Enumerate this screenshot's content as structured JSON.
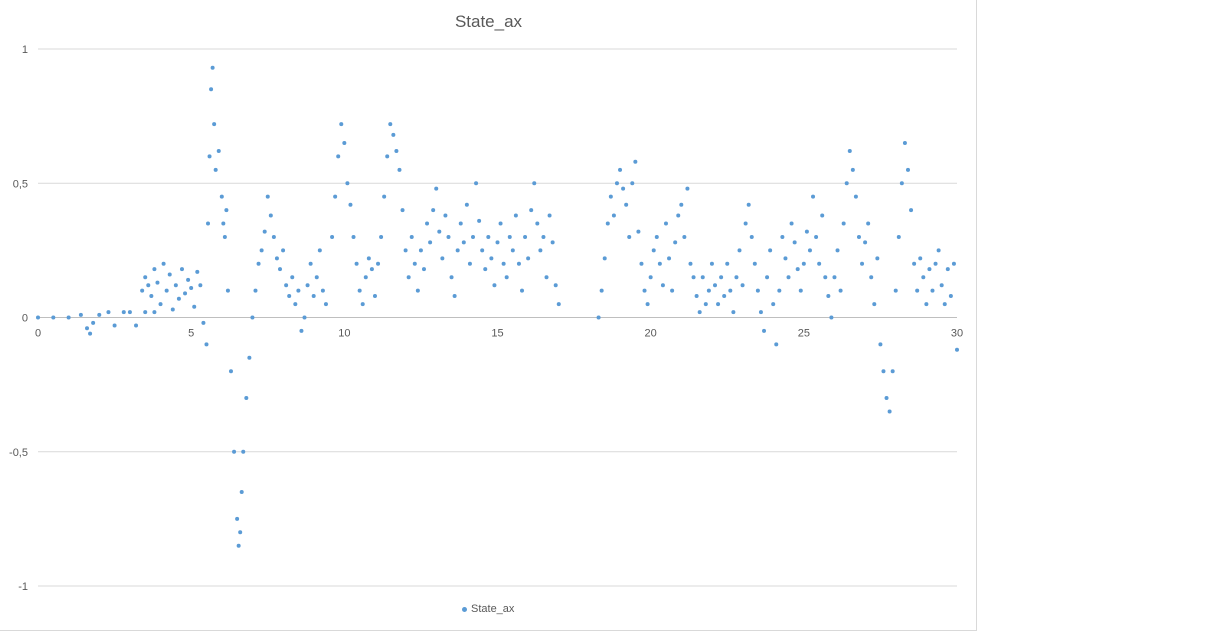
{
  "chart_data": {
    "type": "scatter",
    "title": "State_ax",
    "xlabel": "",
    "ylabel": "",
    "xlim": [
      0,
      30
    ],
    "ylim": [
      -1,
      1
    ],
    "x_ticks": [
      "0",
      "5",
      "10",
      "15",
      "20",
      "25",
      "30"
    ],
    "y_ticks": [
      "1",
      "0,5",
      "0",
      "-0,5",
      "-1"
    ],
    "grid": "horizontal",
    "legend": "bottom",
    "series": [
      {
        "name": "State_ax",
        "color": "#5b9bd5",
        "points": [
          [
            0.0,
            0.0
          ],
          [
            0.5,
            0.0
          ],
          [
            1.0,
            0.0
          ],
          [
            1.4,
            0.01
          ],
          [
            1.6,
            -0.04
          ],
          [
            1.7,
            -0.06
          ],
          [
            1.8,
            -0.02
          ],
          [
            2.0,
            0.01
          ],
          [
            2.3,
            0.02
          ],
          [
            2.5,
            -0.03
          ],
          [
            2.8,
            0.02
          ],
          [
            3.0,
            0.02
          ],
          [
            3.2,
            -0.03
          ],
          [
            3.5,
            0.02
          ],
          [
            3.8,
            0.02
          ],
          [
            3.4,
            0.1
          ],
          [
            3.5,
            0.15
          ],
          [
            3.6,
            0.12
          ],
          [
            3.7,
            0.08
          ],
          [
            3.8,
            0.18
          ],
          [
            3.9,
            0.13
          ],
          [
            4.0,
            0.05
          ],
          [
            4.1,
            0.2
          ],
          [
            4.2,
            0.1
          ],
          [
            4.3,
            0.16
          ],
          [
            4.4,
            0.03
          ],
          [
            4.5,
            0.12
          ],
          [
            4.6,
            0.07
          ],
          [
            4.7,
            0.18
          ],
          [
            4.8,
            0.09
          ],
          [
            4.9,
            0.14
          ],
          [
            5.0,
            0.11
          ],
          [
            5.1,
            0.04
          ],
          [
            5.2,
            0.17
          ],
          [
            5.3,
            0.12
          ],
          [
            5.4,
            -0.02
          ],
          [
            5.5,
            -0.1
          ],
          [
            5.55,
            0.35
          ],
          [
            5.6,
            0.6
          ],
          [
            5.65,
            0.85
          ],
          [
            5.7,
            0.93
          ],
          [
            5.75,
            0.72
          ],
          [
            5.8,
            0.55
          ],
          [
            5.9,
            0.62
          ],
          [
            6.0,
            0.45
          ],
          [
            6.05,
            0.35
          ],
          [
            6.1,
            0.3
          ],
          [
            6.15,
            0.4
          ],
          [
            6.2,
            0.1
          ],
          [
            6.3,
            -0.2
          ],
          [
            6.4,
            -0.5
          ],
          [
            6.5,
            -0.75
          ],
          [
            6.55,
            -0.85
          ],
          [
            6.6,
            -0.8
          ],
          [
            6.65,
            -0.65
          ],
          [
            6.7,
            -0.5
          ],
          [
            6.8,
            -0.3
          ],
          [
            6.9,
            -0.15
          ],
          [
            7.0,
            0.0
          ],
          [
            7.1,
            0.1
          ],
          [
            7.2,
            0.2
          ],
          [
            7.3,
            0.25
          ],
          [
            7.4,
            0.32
          ],
          [
            7.5,
            0.45
          ],
          [
            7.6,
            0.38
          ],
          [
            7.7,
            0.3
          ],
          [
            7.8,
            0.22
          ],
          [
            7.9,
            0.18
          ],
          [
            8.0,
            0.25
          ],
          [
            8.1,
            0.12
          ],
          [
            8.2,
            0.08
          ],
          [
            8.3,
            0.15
          ],
          [
            8.4,
            0.05
          ],
          [
            8.5,
            0.1
          ],
          [
            8.6,
            -0.05
          ],
          [
            8.7,
            0.0
          ],
          [
            8.8,
            0.12
          ],
          [
            8.9,
            0.2
          ],
          [
            9.0,
            0.08
          ],
          [
            9.1,
            0.15
          ],
          [
            9.2,
            0.25
          ],
          [
            9.3,
            0.1
          ],
          [
            9.4,
            0.05
          ],
          [
            9.6,
            0.3
          ],
          [
            9.7,
            0.45
          ],
          [
            9.8,
            0.6
          ],
          [
            9.9,
            0.72
          ],
          [
            10.0,
            0.65
          ],
          [
            10.1,
            0.5
          ],
          [
            10.2,
            0.42
          ],
          [
            10.3,
            0.3
          ],
          [
            10.4,
            0.2
          ],
          [
            10.5,
            0.1
          ],
          [
            10.6,
            0.05
          ],
          [
            10.7,
            0.15
          ],
          [
            10.8,
            0.22
          ],
          [
            10.9,
            0.18
          ],
          [
            11.0,
            0.08
          ],
          [
            11.1,
            0.2
          ],
          [
            11.2,
            0.3
          ],
          [
            11.3,
            0.45
          ],
          [
            11.4,
            0.6
          ],
          [
            11.5,
            0.72
          ],
          [
            11.6,
            0.68
          ],
          [
            11.7,
            0.62
          ],
          [
            11.8,
            0.55
          ],
          [
            11.9,
            0.4
          ],
          [
            12.0,
            0.25
          ],
          [
            12.1,
            0.15
          ],
          [
            12.2,
            0.3
          ],
          [
            12.3,
            0.2
          ],
          [
            12.4,
            0.1
          ],
          [
            12.5,
            0.25
          ],
          [
            12.6,
            0.18
          ],
          [
            12.7,
            0.35
          ],
          [
            12.8,
            0.28
          ],
          [
            12.9,
            0.4
          ],
          [
            13.0,
            0.48
          ],
          [
            13.1,
            0.32
          ],
          [
            13.2,
            0.22
          ],
          [
            13.3,
            0.38
          ],
          [
            13.4,
            0.3
          ],
          [
            13.5,
            0.15
          ],
          [
            13.6,
            0.08
          ],
          [
            13.7,
            0.25
          ],
          [
            13.8,
            0.35
          ],
          [
            13.9,
            0.28
          ],
          [
            14.0,
            0.42
          ],
          [
            14.1,
            0.2
          ],
          [
            14.2,
            0.3
          ],
          [
            14.3,
            0.5
          ],
          [
            14.4,
            0.36
          ],
          [
            14.5,
            0.25
          ],
          [
            14.6,
            0.18
          ],
          [
            14.7,
            0.3
          ],
          [
            14.8,
            0.22
          ],
          [
            14.9,
            0.12
          ],
          [
            15.0,
            0.28
          ],
          [
            15.1,
            0.35
          ],
          [
            15.2,
            0.2
          ],
          [
            15.3,
            0.15
          ],
          [
            15.4,
            0.3
          ],
          [
            15.5,
            0.25
          ],
          [
            15.6,
            0.38
          ],
          [
            15.7,
            0.2
          ],
          [
            15.8,
            0.1
          ],
          [
            15.9,
            0.3
          ],
          [
            16.0,
            0.22
          ],
          [
            16.1,
            0.4
          ],
          [
            16.2,
            0.5
          ],
          [
            16.3,
            0.35
          ],
          [
            16.4,
            0.25
          ],
          [
            16.5,
            0.3
          ],
          [
            16.6,
            0.15
          ],
          [
            16.7,
            0.38
          ],
          [
            16.8,
            0.28
          ],
          [
            16.9,
            0.12
          ],
          [
            17.0,
            0.05
          ],
          [
            18.3,
            0.0
          ],
          [
            18.4,
            0.1
          ],
          [
            18.5,
            0.22
          ],
          [
            18.6,
            0.35
          ],
          [
            18.7,
            0.45
          ],
          [
            18.8,
            0.38
          ],
          [
            18.9,
            0.5
          ],
          [
            19.0,
            0.55
          ],
          [
            19.1,
            0.48
          ],
          [
            19.2,
            0.42
          ],
          [
            19.3,
            0.3
          ],
          [
            19.4,
            0.5
          ],
          [
            19.5,
            0.58
          ],
          [
            19.6,
            0.32
          ],
          [
            19.7,
            0.2
          ],
          [
            19.8,
            0.1
          ],
          [
            19.9,
            0.05
          ],
          [
            20.0,
            0.15
          ],
          [
            20.1,
            0.25
          ],
          [
            20.2,
            0.3
          ],
          [
            20.3,
            0.2
          ],
          [
            20.4,
            0.12
          ],
          [
            20.5,
            0.35
          ],
          [
            20.6,
            0.22
          ],
          [
            20.7,
            0.1
          ],
          [
            20.8,
            0.28
          ],
          [
            20.9,
            0.38
          ],
          [
            21.0,
            0.42
          ],
          [
            21.1,
            0.3
          ],
          [
            21.2,
            0.48
          ],
          [
            21.3,
            0.2
          ],
          [
            21.4,
            0.15
          ],
          [
            21.5,
            0.08
          ],
          [
            21.6,
            0.02
          ],
          [
            21.7,
            0.15
          ],
          [
            21.8,
            0.05
          ],
          [
            21.9,
            0.1
          ],
          [
            22.0,
            0.2
          ],
          [
            22.1,
            0.12
          ],
          [
            22.2,
            0.05
          ],
          [
            22.3,
            0.15
          ],
          [
            22.4,
            0.08
          ],
          [
            22.5,
            0.2
          ],
          [
            22.6,
            0.1
          ],
          [
            22.7,
            0.02
          ],
          [
            22.8,
            0.15
          ],
          [
            22.9,
            0.25
          ],
          [
            23.0,
            0.12
          ],
          [
            23.1,
            0.35
          ],
          [
            23.2,
            0.42
          ],
          [
            23.3,
            0.3
          ],
          [
            23.4,
            0.2
          ],
          [
            23.5,
            0.1
          ],
          [
            23.6,
            0.02
          ],
          [
            23.7,
            -0.05
          ],
          [
            23.8,
            0.15
          ],
          [
            23.9,
            0.25
          ],
          [
            24.0,
            0.05
          ],
          [
            24.1,
            -0.1
          ],
          [
            24.2,
            0.1
          ],
          [
            24.3,
            0.3
          ],
          [
            24.4,
            0.22
          ],
          [
            24.5,
            0.15
          ],
          [
            24.6,
            0.35
          ],
          [
            24.7,
            0.28
          ],
          [
            24.8,
            0.18
          ],
          [
            24.9,
            0.1
          ],
          [
            25.0,
            0.2
          ],
          [
            25.1,
            0.32
          ],
          [
            25.2,
            0.25
          ],
          [
            25.3,
            0.45
          ],
          [
            25.4,
            0.3
          ],
          [
            25.5,
            0.2
          ],
          [
            25.6,
            0.38
          ],
          [
            25.7,
            0.15
          ],
          [
            25.8,
            0.08
          ],
          [
            25.9,
            0.0
          ],
          [
            26.0,
            0.15
          ],
          [
            26.1,
            0.25
          ],
          [
            26.2,
            0.1
          ],
          [
            26.3,
            0.35
          ],
          [
            26.4,
            0.5
          ],
          [
            26.5,
            0.62
          ],
          [
            26.6,
            0.55
          ],
          [
            26.7,
            0.45
          ],
          [
            26.8,
            0.3
          ],
          [
            26.9,
            0.2
          ],
          [
            27.0,
            0.28
          ],
          [
            27.1,
            0.35
          ],
          [
            27.2,
            0.15
          ],
          [
            27.3,
            0.05
          ],
          [
            27.4,
            0.22
          ],
          [
            27.5,
            -0.1
          ],
          [
            27.6,
            -0.2
          ],
          [
            27.7,
            -0.3
          ],
          [
            27.8,
            -0.35
          ],
          [
            27.9,
            -0.2
          ],
          [
            28.0,
            0.1
          ],
          [
            28.1,
            0.3
          ],
          [
            28.2,
            0.5
          ],
          [
            28.3,
            0.65
          ],
          [
            28.4,
            0.55
          ],
          [
            28.5,
            0.4
          ],
          [
            28.6,
            0.2
          ],
          [
            28.7,
            0.1
          ],
          [
            28.8,
            0.22
          ],
          [
            28.9,
            0.15
          ],
          [
            29.0,
            0.05
          ],
          [
            29.1,
            0.18
          ],
          [
            29.2,
            0.1
          ],
          [
            29.3,
            0.2
          ],
          [
            29.4,
            0.25
          ],
          [
            29.5,
            0.12
          ],
          [
            29.6,
            0.05
          ],
          [
            29.7,
            0.18
          ],
          [
            29.8,
            0.08
          ],
          [
            29.9,
            0.2
          ],
          [
            30.0,
            -0.12
          ]
        ]
      }
    ]
  }
}
